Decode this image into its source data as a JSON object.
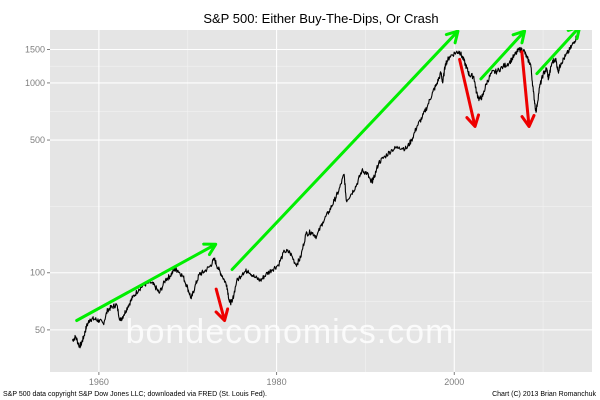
{
  "chart_data": {
    "type": "line",
    "title": "S&P 500: Either Buy-The-Dips, Or Crash",
    "xlabel": "",
    "ylabel": "",
    "x_ticks": [
      1960,
      1980,
      2000
    ],
    "y_ticks": [
      50,
      100,
      500,
      1000,
      1500
    ],
    "y_scale": "log",
    "xlim": [
      1954.5,
      2015.5
    ],
    "ylim": [
      30,
      1900
    ],
    "grid": true,
    "legend": "none",
    "series": [
      {
        "x": [
          1957.0,
          1957.4,
          1957.8,
          1958.0,
          1958.3,
          1958.6,
          1959.0,
          1959.5,
          1960.0,
          1960.5,
          1961.0,
          1961.5,
          1962.0,
          1962.4,
          1962.8,
          1963.3,
          1963.8,
          1964.5,
          1965.2,
          1965.8,
          1966.3,
          1966.8,
          1967.5,
          1968.0,
          1968.5,
          1968.9,
          1969.5,
          1970.0,
          1970.4,
          1970.8,
          1971.3,
          1971.8,
          1972.5,
          1973.0,
          1973.4,
          1973.9,
          1974.4,
          1974.7,
          1975.0,
          1975.5,
          1976.2,
          1976.8,
          1977.5,
          1978.2,
          1978.8,
          1979.5,
          1980.2,
          1980.9,
          1981.5,
          1982.2,
          1982.7,
          1983.3,
          1983.9,
          1984.5,
          1985.2,
          1985.9,
          1986.5,
          1987.0,
          1987.6,
          1987.85,
          1988.4,
          1989.0,
          1989.6,
          1990.2,
          1990.6,
          1990.9,
          1991.5,
          1992.2,
          1993.0,
          1993.8,
          1994.6,
          1995.2,
          1995.8,
          1996.4,
          1997.0,
          1997.6,
          1998.0,
          1998.5,
          1998.7,
          1999.0,
          1999.5,
          2000.2,
          2000.6,
          2001.0,
          2001.4,
          2001.7,
          2002.2,
          2002.5,
          2002.8,
          2003.2,
          2003.6,
          2004.2,
          2004.8,
          2005.5,
          2006.2,
          2006.8,
          2007.3,
          2007.8,
          2008.2,
          2008.6,
          2008.9,
          2009.2,
          2009.6,
          2010.0,
          2010.4,
          2010.6,
          2011.0,
          2011.4,
          2011.7,
          2012.0,
          2012.5,
          2013.0,
          2013.5,
          2013.9
        ],
        "y": [
          44,
          46,
          41,
          42,
          46,
          52,
          57,
          57,
          56,
          54,
          64,
          66,
          68,
          56,
          60,
          67,
          74,
          82,
          87,
          89,
          85,
          78,
          92,
          96,
          104,
          103,
          95,
          83,
          73,
          84,
          98,
          101,
          108,
          118,
          106,
          96,
          86,
          70,
          70,
          90,
          100,
          103,
          95,
          91,
          98,
          104,
          110,
          130,
          128,
          110,
          120,
          160,
          164,
          155,
          185,
          210,
          240,
          270,
          330,
          240,
          260,
          290,
          345,
          335,
          300,
          310,
          380,
          410,
          445,
          460,
          450,
          500,
          590,
          660,
          760,
          900,
          980,
          1130,
          1000,
          1260,
          1380,
          1450,
          1460,
          1340,
          1200,
          1100,
          1080,
          890,
          820,
          850,
          990,
          1130,
          1150,
          1220,
          1280,
          1400,
          1500,
          1490,
          1350,
          1250,
          900,
          700,
          950,
          1110,
          1190,
          1050,
          1280,
          1340,
          1150,
          1270,
          1380,
          1500,
          1650,
          1800
        ]
      }
    ],
    "arrows": [
      {
        "color": "#00ee00",
        "from": {
          "x": 1957.5,
          "y": 56
        },
        "to": {
          "x": 1973.0,
          "y": 140
        }
      },
      {
        "color": "#00ee00",
        "from": {
          "x": 1975.0,
          "y": 104
        },
        "to": {
          "x": 2000.3,
          "y": 1850
        }
      },
      {
        "color": "#00ee00",
        "from": {
          "x": 2003.0,
          "y": 1050
        },
        "to": {
          "x": 2007.8,
          "y": 1850
        }
      },
      {
        "color": "#00ee00",
        "from": {
          "x": 2009.3,
          "y": 1120
        },
        "to": {
          "x": 2014.0,
          "y": 1950
        }
      },
      {
        "color": "#ee0000",
        "from": {
          "x": 1973.2,
          "y": 82
        },
        "to": {
          "x": 1974.1,
          "y": 57
        }
      },
      {
        "color": "#ee0000",
        "from": {
          "x": 2000.6,
          "y": 1330
        },
        "to": {
          "x": 2002.3,
          "y": 600
        }
      },
      {
        "color": "#ee0000",
        "from": {
          "x": 2007.6,
          "y": 1460
        },
        "to": {
          "x": 2008.4,
          "y": 600
        }
      }
    ]
  },
  "watermark": "bondeconomics.com",
  "footer": {
    "left": "S&P 500 data copyright S&P Dow Jones LLC; downloaded via FRED (St. Louis Fed).",
    "right": "Chart (C) 2013 Brian Romanchuk"
  },
  "colors": {
    "panel": "#e5e5e5",
    "grid_major": "#ffffff",
    "grid_minor": "#f2f2f2",
    "line": "#000000",
    "axis_text": "#7f7f7f"
  }
}
